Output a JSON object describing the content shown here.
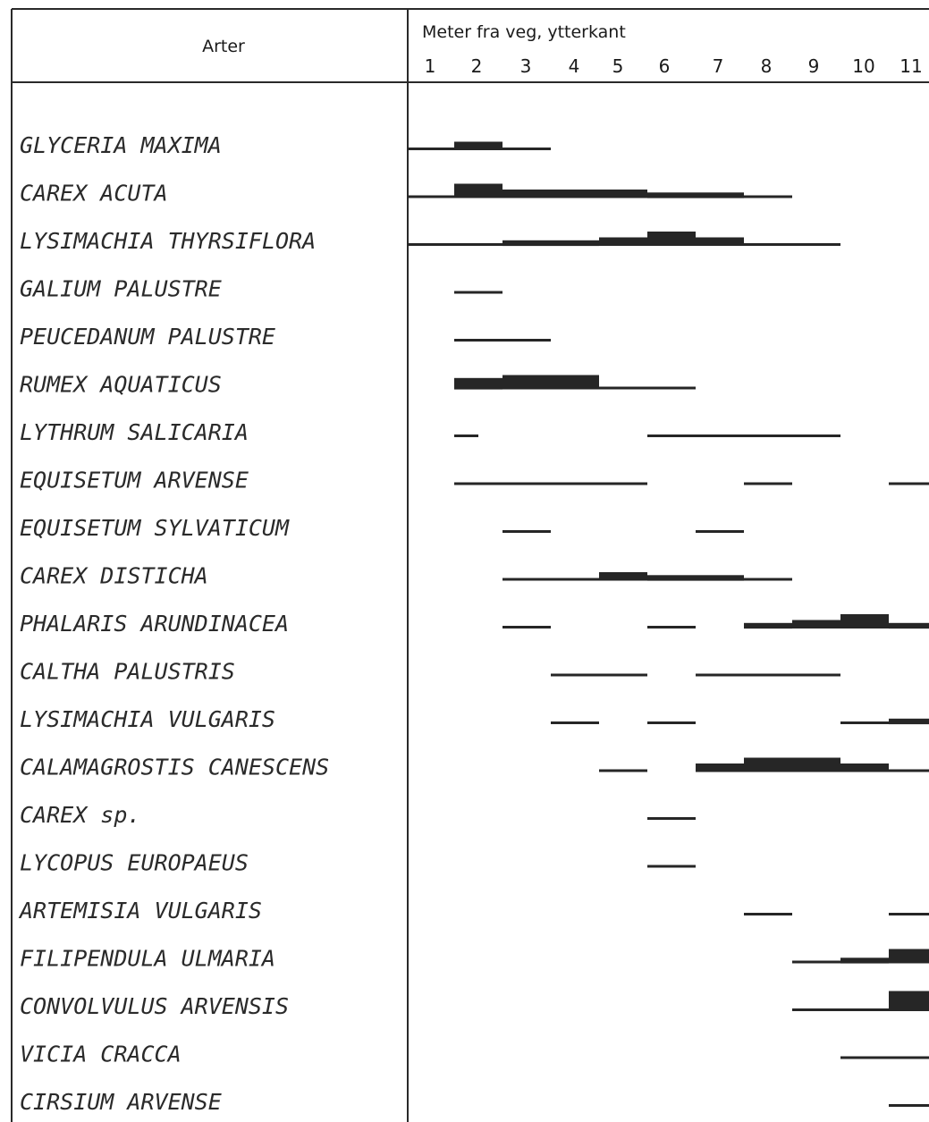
{
  "chart_data": {
    "type": "bar",
    "column_header": "Arter",
    "xlabel": "Meter fra veg, ytterkant",
    "x_ticks": [
      "1",
      "2",
      "3",
      "4",
      "5",
      "6",
      "7",
      "8",
      "9",
      "10",
      "11"
    ],
    "xlim": [
      1,
      12
    ],
    "grid": false,
    "legend": "none",
    "bar_color": "#262626",
    "abundance_levels": {
      "thin": 1,
      "medium": 2,
      "thick": 3
    },
    "species": [
      {
        "name": "GLYCERIA MAXIMA",
        "segments": [
          [
            1,
            2,
            1
          ],
          [
            2,
            3,
            2
          ],
          [
            3,
            4,
            1
          ]
        ]
      },
      {
        "name": "CAREX ACUTA",
        "segments": [
          [
            1,
            2,
            1
          ],
          [
            2,
            3,
            3
          ],
          [
            3,
            6,
            2
          ],
          [
            6,
            8,
            1.5
          ],
          [
            8,
            9,
            1
          ]
        ]
      },
      {
        "name": "LYSIMACHIA THYRSIFLORA",
        "segments": [
          [
            1,
            3,
            1
          ],
          [
            3,
            5,
            1.5
          ],
          [
            5,
            6,
            2
          ],
          [
            6,
            7,
            3
          ],
          [
            7,
            8,
            2
          ],
          [
            8,
            10,
            1
          ]
        ]
      },
      {
        "name": "GALIUM PALUSTRE",
        "segments": [
          [
            2,
            3,
            1
          ]
        ]
      },
      {
        "name": "PEUCEDANUM PALUSTRE",
        "segments": [
          [
            2,
            4,
            1
          ]
        ]
      },
      {
        "name": "RUMEX AQUATICUS",
        "segments": [
          [
            2,
            3,
            2.5
          ],
          [
            3,
            5,
            3
          ],
          [
            5,
            7,
            1
          ]
        ]
      },
      {
        "name": "LYTHRUM SALICARIA",
        "segments": [
          [
            2,
            2.5,
            1
          ],
          [
            6,
            10,
            1
          ]
        ]
      },
      {
        "name": "EQUISETUM ARVENSE",
        "segments": [
          [
            2,
            6,
            1
          ],
          [
            8,
            9,
            1
          ],
          [
            11,
            12,
            1
          ]
        ]
      },
      {
        "name": "EQUISETUM SYLVATICUM",
        "segments": [
          [
            3,
            4,
            1
          ],
          [
            7,
            8,
            1
          ]
        ]
      },
      {
        "name": "CAREX DISTICHA",
        "segments": [
          [
            3,
            5,
            1
          ],
          [
            5,
            6,
            2
          ],
          [
            6,
            8,
            1.5
          ],
          [
            8,
            9,
            1
          ]
        ]
      },
      {
        "name": "PHALARIS ARUNDINACEA",
        "segments": [
          [
            3,
            4,
            1
          ],
          [
            6,
            7,
            1
          ],
          [
            8,
            9,
            1.5
          ],
          [
            9,
            10,
            2
          ],
          [
            10,
            11,
            3
          ],
          [
            11,
            12,
            1.5
          ]
        ]
      },
      {
        "name": "CALTHA PALUSTRIS",
        "segments": [
          [
            4,
            6,
            1
          ],
          [
            7,
            10,
            1
          ]
        ]
      },
      {
        "name": "LYSIMACHIA VULGARIS",
        "segments": [
          [
            4,
            5,
            1
          ],
          [
            6,
            7,
            1
          ],
          [
            10,
            11,
            1
          ],
          [
            11,
            12,
            1.5
          ]
        ]
      },
      {
        "name": "CALAMAGROSTIS CANESCENS",
        "segments": [
          [
            5,
            6,
            1
          ],
          [
            7,
            8,
            2
          ],
          [
            8,
            10,
            3
          ],
          [
            10,
            11,
            2
          ],
          [
            11,
            12,
            1
          ]
        ]
      },
      {
        "name": "CAREX sp.",
        "segments": [
          [
            6,
            7,
            1
          ]
        ]
      },
      {
        "name": "LYCOPUS EUROPAEUS",
        "segments": [
          [
            6,
            7,
            1
          ]
        ]
      },
      {
        "name": "ARTEMISIA VULGARIS",
        "segments": [
          [
            8,
            9,
            1
          ],
          [
            11,
            12,
            1
          ]
        ]
      },
      {
        "name": "FILIPENDULA ULMARIA",
        "segments": [
          [
            9,
            10,
            1
          ],
          [
            10,
            11,
            1.5
          ],
          [
            11,
            12,
            3
          ]
        ]
      },
      {
        "name": "CONVOLVULUS ARVENSIS",
        "segments": [
          [
            9,
            11,
            1
          ],
          [
            11,
            12,
            4
          ]
        ]
      },
      {
        "name": "VICIA CRACCA",
        "segments": [
          [
            10,
            12,
            1
          ]
        ]
      },
      {
        "name": "CIRSIUM ARVENSE",
        "segments": [
          [
            11,
            12,
            1
          ]
        ]
      }
    ]
  }
}
